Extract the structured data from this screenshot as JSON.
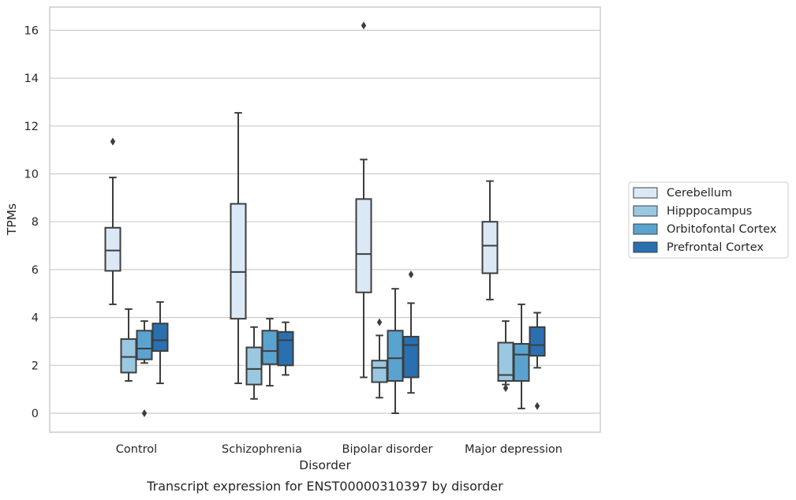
{
  "chart_data": {
    "type": "boxplot",
    "title": "Transcript expression for ENST00000310397 by disorder",
    "xlabel": "Disorder",
    "ylabel": "TPMs",
    "ylim": [
      -0.8,
      17
    ],
    "yticks": [
      0,
      2,
      4,
      6,
      8,
      10,
      12,
      14,
      16
    ],
    "grid": "horizontal",
    "legend_position": "right",
    "categories": [
      "Control",
      "Schizophrenia",
      "Bipolar disorder",
      "Major depression"
    ],
    "series": [
      {
        "name": "Cerebellum",
        "color": "#dbe9f6",
        "boxes": [
          {
            "whislo": 4.55,
            "q1": 5.95,
            "med": 6.8,
            "q3": 7.75,
            "whishi": 9.85,
            "fliers": [
              11.35
            ]
          },
          {
            "whislo": 1.25,
            "q1": 3.95,
            "med": 5.9,
            "q3": 8.75,
            "whishi": 12.55,
            "fliers": []
          },
          {
            "whislo": 1.5,
            "q1": 5.05,
            "med": 6.65,
            "q3": 8.95,
            "whishi": 10.6,
            "fliers": [
              16.2
            ]
          },
          {
            "whislo": 4.75,
            "q1": 5.85,
            "med": 7.0,
            "q3": 8.0,
            "whishi": 9.7,
            "fliers": []
          }
        ]
      },
      {
        "name": "Hipppocampus",
        "color": "#9ac8e0",
        "boxes": [
          {
            "whislo": 1.35,
            "q1": 1.7,
            "med": 2.35,
            "q3": 3.1,
            "whishi": 4.35,
            "fliers": []
          },
          {
            "whislo": 0.6,
            "q1": 1.2,
            "med": 1.85,
            "q3": 2.75,
            "whishi": 3.6,
            "fliers": []
          },
          {
            "whislo": 0.65,
            "q1": 1.3,
            "med": 1.9,
            "q3": 2.2,
            "whishi": 3.25,
            "fliers": [
              3.8
            ]
          },
          {
            "whislo": 1.2,
            "q1": 1.35,
            "med": 1.6,
            "q3": 2.95,
            "whishi": 3.85,
            "fliers": [
              1.05
            ]
          }
        ]
      },
      {
        "name": "Orbitofontal Cortex",
        "color": "#5ba3cf",
        "boxes": [
          {
            "whislo": 2.1,
            "q1": 2.25,
            "med": 2.7,
            "q3": 3.45,
            "whishi": 3.85,
            "fliers": [
              0.0
            ]
          },
          {
            "whislo": 1.15,
            "q1": 2.05,
            "med": 2.6,
            "q3": 3.45,
            "whishi": 3.95,
            "fliers": []
          },
          {
            "whislo": 0.0,
            "q1": 1.35,
            "med": 2.3,
            "q3": 3.45,
            "whishi": 5.2,
            "fliers": []
          },
          {
            "whislo": 0.2,
            "q1": 1.35,
            "med": 2.45,
            "q3": 2.9,
            "whishi": 4.55,
            "fliers": []
          }
        ]
      },
      {
        "name": "Prefrontal Cortex",
        "color": "#2a70b1",
        "boxes": [
          {
            "whislo": 1.25,
            "q1": 2.6,
            "med": 3.05,
            "q3": 3.75,
            "whishi": 4.65,
            "fliers": []
          },
          {
            "whislo": 1.6,
            "q1": 2.0,
            "med": 3.05,
            "q3": 3.4,
            "whishi": 3.8,
            "fliers": []
          },
          {
            "whislo": 0.85,
            "q1": 1.5,
            "med": 2.85,
            "q3": 3.2,
            "whishi": 4.6,
            "fliers": [
              5.8
            ]
          },
          {
            "whislo": 1.9,
            "q1": 2.4,
            "med": 2.85,
            "q3": 3.6,
            "whishi": 4.2,
            "fliers": [
              0.3
            ]
          }
        ]
      }
    ]
  }
}
